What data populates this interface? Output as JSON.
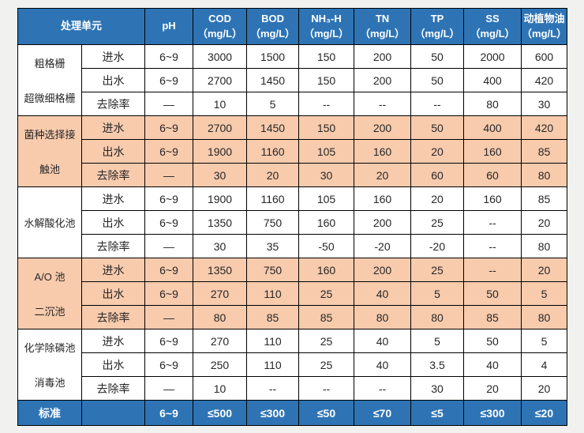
{
  "palette": {
    "header_bg": "#2E74B5",
    "band_peach": "#F8CBAD",
    "band_white": "#FFFFFF",
    "header_text": "#FFFFFF",
    "body_text": "#262626",
    "border": "#000000",
    "page_bg": "#F1F1F0"
  },
  "table": {
    "header": {
      "unit_label": "处理单元",
      "columns": [
        {
          "line1": "pH",
          "line2": ""
        },
        {
          "line1": "COD",
          "line2": "（mg/L）"
        },
        {
          "line1": "BOD",
          "line2": "（mg/L）"
        },
        {
          "line1": "NH₃-H",
          "line2": "（mg/L）"
        },
        {
          "line1": "TN",
          "line2": "（mg/L）"
        },
        {
          "line1": "TP",
          "line2": "（mg/L）"
        },
        {
          "line1": "SS",
          "line2": "（mg/L）"
        },
        {
          "line1": "动植物油",
          "line2": "（mg/L）"
        }
      ]
    },
    "groups": [
      {
        "name_lines": [
          "粗格栅",
          "超微细格栅"
        ],
        "band": "white",
        "rows": [
          {
            "label": "进水",
            "values": [
              "6~9",
              "3000",
              "1500",
              "150",
              "200",
              "50",
              "2000",
              "600"
            ]
          },
          {
            "label": "出水",
            "values": [
              "6~9",
              "2700",
              "1450",
              "150",
              "200",
              "50",
              "400",
              "420"
            ]
          },
          {
            "label": "去除率",
            "values": [
              "—",
              "10",
              "5",
              "--",
              "--",
              "--",
              "80",
              "30"
            ]
          }
        ]
      },
      {
        "name_lines": [
          "菌种选择接",
          "触池"
        ],
        "band": "peach",
        "rows": [
          {
            "label": "进水",
            "values": [
              "6~9",
              "2700",
              "1450",
              "150",
              "200",
              "50",
              "400",
              "420"
            ]
          },
          {
            "label": "出水",
            "values": [
              "6~9",
              "1900",
              "1160",
              "105",
              "160",
              "20",
              "160",
              "85"
            ]
          },
          {
            "label": "去除率",
            "values": [
              "—",
              "30",
              "20",
              "30",
              "20",
              "60",
              "60",
              "80"
            ]
          }
        ]
      },
      {
        "name_lines": [
          "水解酸化池"
        ],
        "band": "white",
        "rows": [
          {
            "label": "进水",
            "values": [
              "6~9",
              "1900",
              "1160",
              "105",
              "160",
              "20",
              "160",
              "85"
            ]
          },
          {
            "label": "出水",
            "values": [
              "6~9",
              "1350",
              "750",
              "160",
              "200",
              "25",
              "--",
              "20"
            ]
          },
          {
            "label": "去除率",
            "values": [
              "—",
              "30",
              "35",
              "-50",
              "-20",
              "-20",
              "--",
              "80"
            ]
          }
        ]
      },
      {
        "name_lines": [
          "A/O 池",
          "二沉池"
        ],
        "band": "peach",
        "rows": [
          {
            "label": "进水",
            "values": [
              "6~9",
              "1350",
              "750",
              "160",
              "200",
              "25",
              "--",
              "20"
            ]
          },
          {
            "label": "出水",
            "values": [
              "6~9",
              "270",
              "110",
              "25",
              "40",
              "5",
              "50",
              "5"
            ]
          },
          {
            "label": "去除率",
            "values": [
              "—",
              "80",
              "85",
              "85",
              "80",
              "80",
              "85",
              "80"
            ]
          }
        ]
      },
      {
        "name_lines": [
          "化学除磷池",
          "消毒池"
        ],
        "band": "white",
        "rows": [
          {
            "label": "进水",
            "values": [
              "6~9",
              "270",
              "110",
              "25",
              "40",
              "5",
              "50",
              "5"
            ]
          },
          {
            "label": "出水",
            "values": [
              "6~9",
              "250",
              "110",
              "25",
              "40",
              "3.5",
              "40",
              "4"
            ]
          },
          {
            "label": "去除率",
            "values": [
              "—",
              "10",
              "--",
              "--",
              "--",
              "30",
              "20",
              "20"
            ]
          }
        ]
      }
    ],
    "footer": {
      "label": "标准",
      "values": [
        "6~9",
        "≤500",
        "≤300",
        "≤50",
        "≤70",
        "≤5",
        "≤300",
        "≤20"
      ]
    }
  }
}
